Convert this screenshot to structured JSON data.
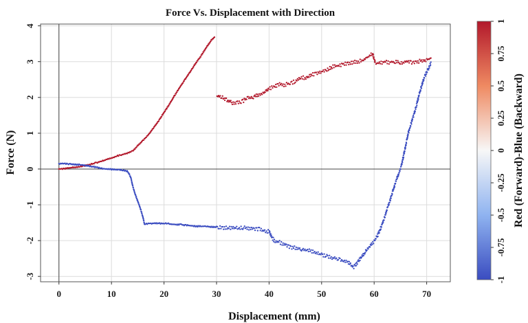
{
  "chart_data": {
    "type": "scatter",
    "title": "Force Vs. Displacement with Direction",
    "xlabel": "Displacement (mm)",
    "ylabel": "Force (N)",
    "xlim": [
      -3.5,
      74.5
    ],
    "ylim": [
      -3.15,
      4.05
    ],
    "xticks": [
      0,
      10,
      20,
      30,
      40,
      50,
      60,
      70
    ],
    "yticks": [
      -3,
      -2,
      -1,
      0,
      1,
      2,
      3,
      4
    ],
    "grid": true,
    "reference_lines": {
      "x": 0,
      "y": 0
    },
    "colorbar": {
      "label": "Red (Forward)-Blue (Backward)",
      "range": [
        -1,
        1
      ],
      "ticks": [
        "1",
        "0.75",
        "0.5",
        "0.25",
        "0",
        "-0.25",
        "-0.5",
        "-0.75",
        "-1"
      ],
      "colors": [
        "#b2182b",
        "#ef8a62",
        "#f7f7f7",
        "#8fb3f0",
        "#3a4cc0"
      ],
      "placement": "right"
    },
    "series": [
      {
        "direction": 1,
        "color": "#b2182b",
        "points": [
          [
            0,
            0.0
          ],
          [
            1,
            0.01
          ],
          [
            2,
            0.03
          ],
          [
            3,
            0.05
          ],
          [
            4,
            0.07
          ],
          [
            5,
            0.1
          ],
          [
            6,
            0.13
          ],
          [
            7,
            0.17
          ],
          [
            8,
            0.21
          ],
          [
            9,
            0.26
          ],
          [
            10,
            0.31
          ],
          [
            11,
            0.36
          ],
          [
            12,
            0.4
          ],
          [
            13,
            0.44
          ],
          [
            14,
            0.5
          ],
          [
            15,
            0.65
          ],
          [
            16,
            0.8
          ],
          [
            17,
            0.95
          ],
          [
            18,
            1.15
          ],
          [
            19,
            1.35
          ],
          [
            20,
            1.58
          ],
          [
            21,
            1.8
          ],
          [
            22,
            2.05
          ],
          [
            23,
            2.28
          ],
          [
            24,
            2.5
          ],
          [
            25,
            2.72
          ],
          [
            26,
            2.95
          ],
          [
            27,
            3.15
          ],
          [
            28,
            3.38
          ],
          [
            29,
            3.6
          ],
          [
            29.6,
            3.67
          ],
          [
            30.1,
            2.05
          ],
          [
            31,
            2.0
          ],
          [
            32,
            1.92
          ],
          [
            33,
            1.85
          ],
          [
            34,
            1.85
          ],
          [
            35,
            1.9
          ],
          [
            36,
            1.98
          ],
          [
            37,
            2.0
          ],
          [
            38,
            2.08
          ],
          [
            39,
            2.12
          ],
          [
            40,
            2.25
          ],
          [
            41,
            2.3
          ],
          [
            42,
            2.38
          ],
          [
            43,
            2.35
          ],
          [
            44,
            2.4
          ],
          [
            45,
            2.45
          ],
          [
            46,
            2.55
          ],
          [
            47,
            2.55
          ],
          [
            48,
            2.62
          ],
          [
            49,
            2.68
          ],
          [
            50,
            2.72
          ],
          [
            51,
            2.78
          ],
          [
            52,
            2.85
          ],
          [
            53,
            2.88
          ],
          [
            54,
            2.92
          ],
          [
            55,
            2.95
          ],
          [
            56,
            2.98
          ],
          [
            57,
            3.0
          ],
          [
            58,
            3.05
          ],
          [
            59,
            3.15
          ],
          [
            59.7,
            3.22
          ],
          [
            60.2,
            2.98
          ],
          [
            61,
            2.95
          ],
          [
            62,
            3.0
          ],
          [
            63,
            2.98
          ],
          [
            64,
            3.0
          ],
          [
            65,
            2.95
          ],
          [
            66,
            3.0
          ],
          [
            67,
            2.98
          ],
          [
            68,
            3.0
          ],
          [
            69,
            3.02
          ],
          [
            70,
            3.05
          ],
          [
            70.8,
            3.1
          ]
        ]
      },
      {
        "direction": -1,
        "color": "#3a4cc0",
        "points": [
          [
            70.8,
            2.95
          ],
          [
            70.3,
            2.8
          ],
          [
            69.5,
            2.55
          ],
          [
            69,
            2.3
          ],
          [
            68.5,
            2.05
          ],
          [
            68,
            1.75
          ],
          [
            67.5,
            1.5
          ],
          [
            67,
            1.25
          ],
          [
            66.5,
            1.0
          ],
          [
            66,
            0.65
          ],
          [
            65.5,
            0.3
          ],
          [
            65,
            0.0
          ],
          [
            64.5,
            -0.2
          ],
          [
            64,
            -0.4
          ],
          [
            63.5,
            -0.65
          ],
          [
            63,
            -0.9
          ],
          [
            62.5,
            -1.1
          ],
          [
            62,
            -1.35
          ],
          [
            61.5,
            -1.55
          ],
          [
            61,
            -1.75
          ],
          [
            60.5,
            -1.9
          ],
          [
            60,
            -2.02
          ],
          [
            59.5,
            -2.1
          ],
          [
            59,
            -2.2
          ],
          [
            58.5,
            -2.28
          ],
          [
            58,
            -2.38
          ],
          [
            57.5,
            -2.48
          ],
          [
            57,
            -2.58
          ],
          [
            56.5,
            -2.68
          ],
          [
            56,
            -2.75
          ],
          [
            55,
            -2.6
          ],
          [
            54,
            -2.55
          ],
          [
            53,
            -2.52
          ],
          [
            52,
            -2.48
          ],
          [
            51,
            -2.42
          ],
          [
            50,
            -2.4
          ],
          [
            49,
            -2.35
          ],
          [
            48,
            -2.3
          ],
          [
            47,
            -2.25
          ],
          [
            46,
            -2.25
          ],
          [
            45,
            -2.2
          ],
          [
            44,
            -2.18
          ],
          [
            43,
            -2.1
          ],
          [
            42,
            -2.05
          ],
          [
            41,
            -2.0
          ],
          [
            40.5,
            -1.9
          ],
          [
            40,
            -1.75
          ],
          [
            39,
            -1.72
          ],
          [
            38,
            -1.68
          ],
          [
            37,
            -1.66
          ],
          [
            36,
            -1.65
          ],
          [
            35,
            -1.64
          ],
          [
            34,
            -1.65
          ],
          [
            33,
            -1.64
          ],
          [
            32,
            -1.65
          ],
          [
            31,
            -1.63
          ],
          [
            30,
            -1.62
          ],
          [
            29,
            -1.62
          ],
          [
            28,
            -1.6
          ],
          [
            27,
            -1.6
          ],
          [
            26,
            -1.6
          ],
          [
            25,
            -1.58
          ],
          [
            24,
            -1.57
          ],
          [
            23,
            -1.55
          ],
          [
            22,
            -1.55
          ],
          [
            21,
            -1.53
          ],
          [
            20,
            -1.52
          ],
          [
            19,
            -1.52
          ],
          [
            18,
            -1.52
          ],
          [
            17,
            -1.52
          ],
          [
            16.3,
            -1.55
          ],
          [
            16,
            -1.35
          ],
          [
            15.5,
            -1.1
          ],
          [
            15,
            -0.9
          ],
          [
            14.5,
            -0.7
          ],
          [
            14,
            -0.45
          ],
          [
            13.7,
            -0.25
          ],
          [
            13.3,
            -0.12
          ],
          [
            13,
            -0.06
          ],
          [
            12,
            -0.03
          ],
          [
            11,
            -0.02
          ],
          [
            10,
            -0.01
          ],
          [
            9,
            0.0
          ],
          [
            8,
            0.02
          ],
          [
            7,
            0.05
          ],
          [
            6,
            0.08
          ],
          [
            5,
            0.1
          ],
          [
            4,
            0.12
          ],
          [
            3,
            0.13
          ],
          [
            2,
            0.14
          ],
          [
            1,
            0.15
          ],
          [
            0,
            0.15
          ]
        ]
      }
    ]
  }
}
